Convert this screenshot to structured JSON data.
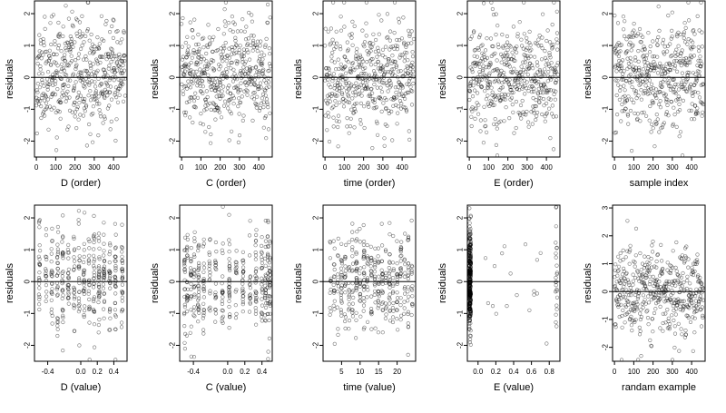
{
  "chart_data": [
    {
      "type": "scatter",
      "xlabel": "D (order)",
      "ylabel": "residuals",
      "xticks": [
        0,
        100,
        200,
        300,
        400
      ],
      "yticks": [
        -2,
        -1,
        0,
        1,
        2
      ],
      "xlim": [
        -10,
        470
      ],
      "ylim": [
        -2.5,
        2.4
      ],
      "n": 460,
      "pattern": "index",
      "hline": 0,
      "seed": 11
    },
    {
      "type": "scatter",
      "xlabel": "C (order)",
      "ylabel": "residuals",
      "xticks": [
        0,
        100,
        200,
        300,
        400
      ],
      "yticks": [
        -2,
        -1,
        0,
        1,
        2
      ],
      "xlim": [
        -10,
        470
      ],
      "ylim": [
        -2.5,
        2.4
      ],
      "n": 460,
      "pattern": "index",
      "hline": 0,
      "seed": 23
    },
    {
      "type": "scatter",
      "xlabel": "time (order)",
      "ylabel": "residuals",
      "xticks": [
        0,
        100,
        200,
        300,
        400
      ],
      "yticks": [
        -2,
        -1,
        0,
        1,
        2
      ],
      "xlim": [
        -10,
        470
      ],
      "ylim": [
        -2.5,
        2.4
      ],
      "n": 460,
      "pattern": "index",
      "hline": 0,
      "seed": 37
    },
    {
      "type": "scatter",
      "xlabel": "E (order)",
      "ylabel": "residuals",
      "xticks": [
        0,
        100,
        200,
        300,
        400
      ],
      "yticks": [
        -2,
        -1,
        0,
        1,
        2
      ],
      "xlim": [
        -10,
        470
      ],
      "ylim": [
        -2.5,
        2.4
      ],
      "n": 460,
      "pattern": "index",
      "hline": 0,
      "seed": 41
    },
    {
      "type": "scatter",
      "xlabel": "sample index",
      "ylabel": "residuals",
      "xticks": [
        0,
        100,
        200,
        300,
        400
      ],
      "yticks": [
        -2,
        -1,
        0,
        1,
        2
      ],
      "xlim": [
        -10,
        470
      ],
      "ylim": [
        -2.5,
        2.4
      ],
      "n": 460,
      "pattern": "index",
      "hline": 0,
      "seed": 53
    },
    {
      "type": "scatter",
      "xlabel": "D (value)",
      "ylabel": "residuals",
      "xticks": [
        -0.4,
        0,
        0.2,
        0.4
      ],
      "xtick_labels": [
        "-0.4",
        "0.0",
        "0.2",
        "0.4"
      ],
      "yticks": [
        -2,
        -1,
        0,
        1,
        2
      ],
      "xlim": [
        -0.56,
        0.56
      ],
      "ylim": [
        -2.5,
        2.4
      ],
      "n": 400,
      "pattern": "columns",
      "columns": [
        -0.5,
        -0.42,
        -0.35,
        -0.28,
        -0.22,
        -0.15,
        -0.08,
        -0.02,
        0.04,
        0.1,
        0.16,
        0.22,
        0.28,
        0.35,
        0.42,
        0.5
      ],
      "hline": 0,
      "seed": 61
    },
    {
      "type": "scatter",
      "xlabel": "C (value)",
      "ylabel": "residuals",
      "xticks": [
        -0.4,
        0,
        0.2,
        0.4
      ],
      "xtick_labels": [
        "-0.4",
        "0.0",
        "0.2",
        "0.4"
      ],
      "yticks": [
        -2,
        -1,
        0,
        1,
        2
      ],
      "xlim": [
        -0.56,
        0.52
      ],
      "ylim": [
        -2.5,
        2.4
      ],
      "n": 400,
      "pattern": "columns",
      "columns": [
        -0.5,
        -0.47,
        -0.43,
        -0.39,
        -0.34,
        -0.28,
        -0.21,
        -0.14,
        -0.06,
        0.02,
        0.1,
        0.18,
        0.26,
        0.33,
        0.4,
        0.44,
        0.47,
        0.49
      ],
      "hline": 0,
      "seed": 71
    },
    {
      "type": "scatter",
      "xlabel": "time (value)",
      "ylabel": "residuals",
      "xticks": [
        5,
        10,
        15,
        20
      ],
      "yticks": [
        -2,
        -1,
        0,
        1,
        2
      ],
      "xlim": [
        0,
        25
      ],
      "ylim": [
        -2.5,
        2.4
      ],
      "n": 400,
      "pattern": "columns",
      "columns": [
        2,
        3,
        4,
        5,
        6,
        7,
        8,
        9,
        10,
        11,
        12,
        13,
        14,
        15,
        16,
        17,
        18,
        19,
        20,
        21,
        22,
        23,
        24
      ],
      "hline": 0,
      "seed": 83
    },
    {
      "type": "scatter",
      "xlabel": "E (value)",
      "ylabel": "residuals",
      "xticks": [
        0,
        0.2,
        0.4,
        0.6,
        0.8
      ],
      "xtick_labels": [
        "0.0",
        "0.2",
        "0.4",
        "0.6",
        "0.8"
      ],
      "yticks": [
        -2,
        -1,
        0,
        1,
        2
      ],
      "xlim": [
        -0.12,
        0.92
      ],
      "ylim": [
        -2.5,
        2.4
      ],
      "n": 360,
      "pattern": "cluster",
      "columns": [
        -0.09,
        0.88
      ],
      "hline": 0,
      "seed": 97
    },
    {
      "type": "scatter",
      "xlabel": "randam example",
      "ylabel": "residuals",
      "xticks": [
        0,
        100,
        200,
        300,
        400
      ],
      "yticks": [
        -2,
        -1,
        0,
        1,
        2,
        3
      ],
      "xlim": [
        -10,
        470
      ],
      "ylim": [
        -2.5,
        3.1
      ],
      "n": 460,
      "pattern": "index",
      "hline": 0,
      "seed": 109
    }
  ]
}
